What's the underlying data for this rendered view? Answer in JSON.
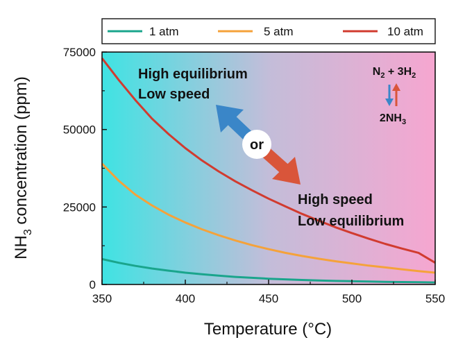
{
  "chart_data": {
    "type": "line",
    "xlabel": "Temperature (°C)",
    "ylabel_main": "NH",
    "ylabel_sub": "3",
    "ylabel_rest": " concentration (ppm)",
    "xlim": [
      350,
      550
    ],
    "ylim": [
      0,
      75000
    ],
    "x_ticks": [
      "350",
      "400",
      "450",
      "500",
      "550"
    ],
    "y_ticks": [
      "0",
      "25000",
      "50000",
      "75000"
    ],
    "legend_position": "top",
    "grid": false,
    "x": [
      350,
      360,
      370,
      380,
      390,
      400,
      410,
      420,
      430,
      440,
      450,
      460,
      470,
      480,
      490,
      500,
      510,
      520,
      530,
      540,
      550
    ],
    "series": [
      {
        "name": "1 atm",
        "color": "#1aa58c",
        "values": [
          8200,
          7000,
          6000,
          5150,
          4450,
          3800,
          3300,
          2850,
          2450,
          2150,
          1850,
          1650,
          1450,
          1300,
          1150,
          1050,
          950,
          850,
          780,
          720,
          650
        ]
      },
      {
        "name": "5 atm",
        "color": "#f5a23a",
        "values": [
          39000,
          33500,
          29000,
          25500,
          22500,
          20000,
          17800,
          15900,
          14200,
          12700,
          11400,
          10200,
          9200,
          8300,
          7500,
          6800,
          6100,
          5500,
          4900,
          4300,
          3800
        ]
      },
      {
        "name": "10 atm",
        "color": "#d13b2f",
        "values": [
          73000,
          66000,
          59500,
          53500,
          48500,
          44000,
          40000,
          36500,
          33300,
          30400,
          27700,
          25200,
          22800,
          20600,
          18500,
          16600,
          14800,
          13100,
          11600,
          10200,
          7000
        ]
      }
    ],
    "annotations": {
      "left_line1": "High equilibrium",
      "left_line2": "Low speed",
      "right_line1": "High speed",
      "right_line2": "Low equilibrium",
      "center": "or",
      "reaction_top_a": "N",
      "reaction_top_a_sub": "2",
      "reaction_top_b": " + 3H",
      "reaction_top_b_sub": "2",
      "reaction_bottom": "2NH",
      "reaction_bottom_sub": "3"
    },
    "colors": {
      "gradient_left": "#3fe0e0",
      "gradient_mid": "#c7bdd8",
      "gradient_right": "#f4a8cf",
      "arrow_blue": "#3a86c8",
      "arrow_red": "#d9553a"
    }
  }
}
